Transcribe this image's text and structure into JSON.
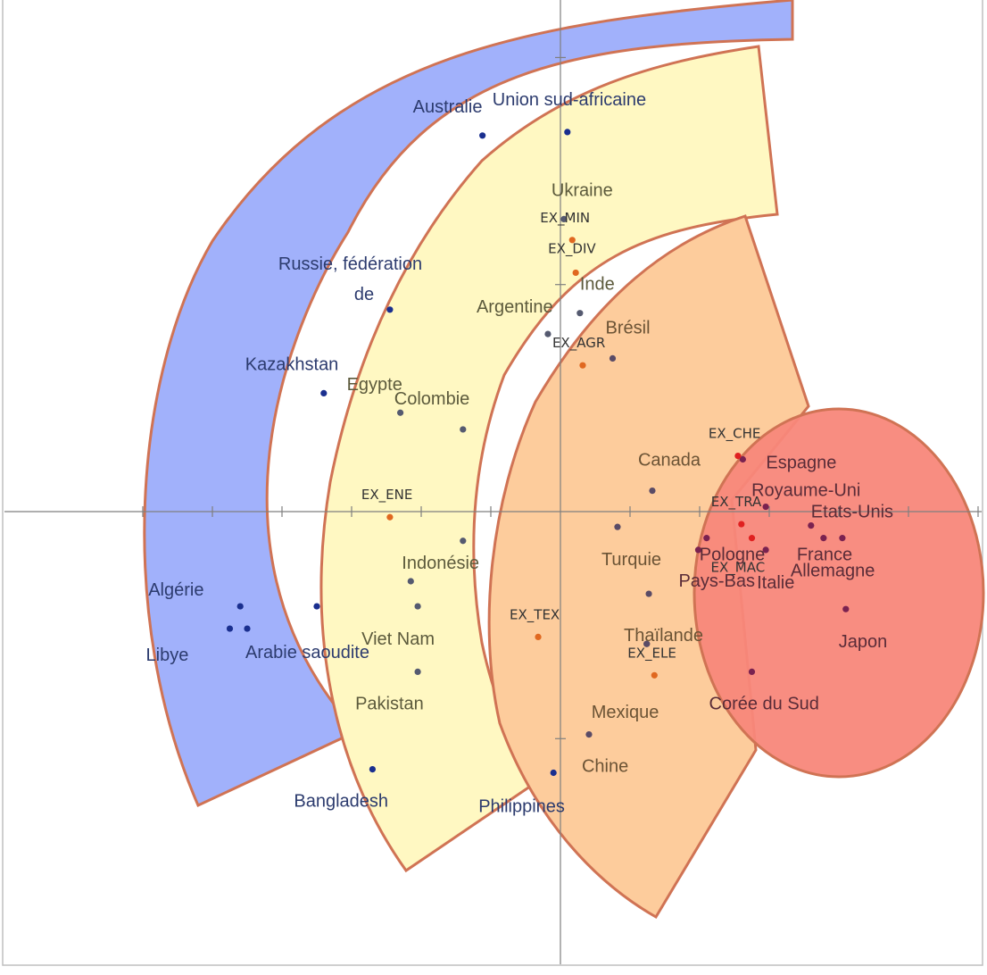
{
  "chart_data": {
    "type": "scatter",
    "title": "",
    "xlabel": "",
    "ylabel": "",
    "grid": false,
    "xlim": [
      -6.1,
      6.0
    ],
    "ylim": [
      -5.4,
      6.2
    ],
    "region_colors": {
      "outer_band": "#a1b1fb",
      "middle_band": "#fff8c2",
      "inner_band": "#fdcc9c",
      "core_ellipse": "#f8877a",
      "border": "#d07354"
    },
    "series": [
      {
        "name": "",
        "color": "#1a2f8f",
        "label_color": "#2c3b6e",
        "points": [
          {
            "label": "Australie",
            "x": -1.12,
            "y": 5.4
          },
          {
            "label": "Union sud-africaine",
            "x": 0.1,
            "y": 5.45
          },
          {
            "label": "Russie, fédération de",
            "x": -2.45,
            "y": 2.9
          },
          {
            "label": "Kazakhstan",
            "x": -3.4,
            "y": 1.7
          },
          {
            "label": "Algérie",
            "x": -4.6,
            "y": -1.36
          },
          {
            "label": "",
            "x": -3.5,
            "y": -1.36
          },
          {
            "label": "Libye",
            "x": -4.75,
            "y": -1.68
          },
          {
            "label": "Arabie saoudite",
            "x": -4.5,
            "y": -1.68
          },
          {
            "label": "Bangladesh",
            "x": -2.7,
            "y": -3.7
          },
          {
            "label": "Philippines",
            "x": -0.1,
            "y": -3.75
          }
        ]
      },
      {
        "name": "",
        "color": "#555a70",
        "label_color": "#5c5a3c",
        "points": [
          {
            "label": "Ukraine",
            "x": 0.05,
            "y": 4.2
          },
          {
            "label": "Inde",
            "x": 0.28,
            "y": 2.85
          },
          {
            "label": "Argentine",
            "x": -0.18,
            "y": 2.55
          },
          {
            "label": "Egypte",
            "x": -2.3,
            "y": 1.42
          },
          {
            "label": "Colombie",
            "x": -1.4,
            "y": 1.18
          },
          {
            "label": "",
            "x": -1.4,
            "y": -0.42
          },
          {
            "label": "Indonésie",
            "x": -2.15,
            "y": -1.0
          },
          {
            "label": "Viet Nam",
            "x": -2.05,
            "y": -1.36
          },
          {
            "label": "Pakistan",
            "x": -2.05,
            "y": -2.3
          }
        ]
      },
      {
        "name": "",
        "color": "#5a4b66",
        "label_color": "#6b5335",
        "points": [
          {
            "label": "Brésil",
            "x": 0.75,
            "y": 2.2
          },
          {
            "label": "Canada",
            "x": 1.32,
            "y": 0.3
          },
          {
            "label": "Turquie",
            "x": 0.82,
            "y": -0.22
          },
          {
            "label": "Thaïlande",
            "x": 1.27,
            "y": -1.18
          },
          {
            "label": "",
            "x": 1.24,
            "y": -1.9
          },
          {
            "label": "Mexique",
            "x": 1.24,
            "y": -1.9
          },
          {
            "label": "Chine",
            "x": 0.41,
            "y": -3.2
          }
        ]
      },
      {
        "name": "",
        "color": "#7a2250",
        "label_color": "#5a2c38",
        "points": [
          {
            "label": "Espagne",
            "x": 2.62,
            "y": 0.75
          },
          {
            "label": "Royaume-Uni",
            "x": 2.95,
            "y": 0.07
          },
          {
            "label": "Etats-Unis",
            "x": 3.6,
            "y": -0.2
          },
          {
            "label": "France",
            "x": 3.78,
            "y": -0.38
          },
          {
            "label": "Allemagne",
            "x": 4.05,
            "y": -0.38
          },
          {
            "label": "Pologne",
            "x": 2.1,
            "y": -0.38
          },
          {
            "label": "Pays-Bas",
            "x": 1.98,
            "y": -0.55
          },
          {
            "label": "Italie",
            "x": 2.95,
            "y": -0.55
          },
          {
            "label": "Japon",
            "x": 4.1,
            "y": -1.4
          },
          {
            "label": "Corée du Sud",
            "x": 2.75,
            "y": -2.3
          }
        ]
      },
      {
        "name": "",
        "color_outer": "#e06820",
        "color_inner": "#e02020",
        "points": [
          {
            "label": "EX_MIN",
            "x": 0.17,
            "y": 3.9
          },
          {
            "label": "EX_DIV",
            "x": 0.22,
            "y": 3.43
          },
          {
            "label": "EX_AGR",
            "x": 0.32,
            "y": 2.1
          },
          {
            "label": "EX_ENE",
            "x": -2.45,
            "y": -0.08
          },
          {
            "label": "EX_TEX",
            "x": -0.32,
            "y": -1.8
          },
          {
            "label": "EX_ELE",
            "x": 1.35,
            "y": -2.35
          },
          {
            "label": "EX_CHE",
            "x": 2.55,
            "y": 0.8
          },
          {
            "label": "EX_TRA",
            "x": 2.6,
            "y": -0.18
          },
          {
            "label": "EX_MAC",
            "x": 2.75,
            "y": -0.38
          }
        ]
      }
    ]
  }
}
